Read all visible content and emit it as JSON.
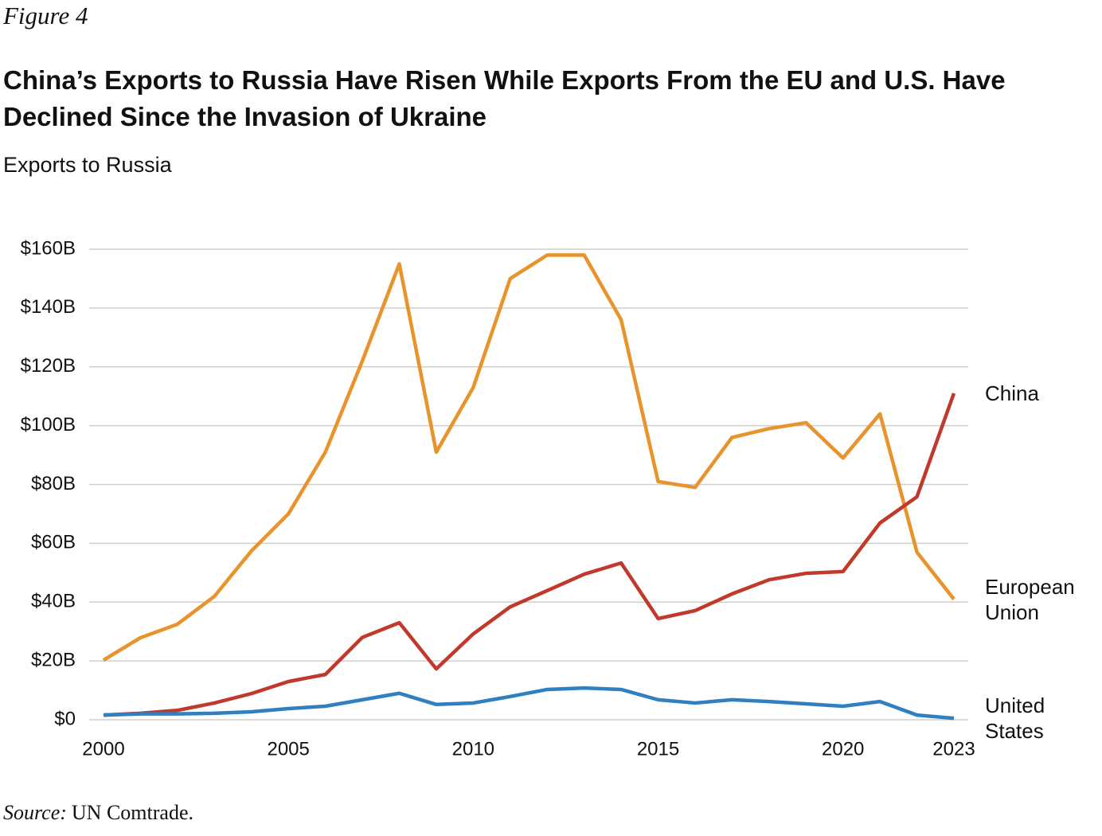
{
  "figure_label": "Figure 4",
  "source": {
    "label": "Source:",
    "text": "UN Comtrade."
  },
  "chart_data": {
    "type": "line",
    "title": "China’s Exports to Russia Have Risen While Exports From the EU and U.S. Have Declined Since the Invasion of Ukraine",
    "subtitle": "Exports to Russia",
    "x": [
      2000,
      2001,
      2002,
      2003,
      2004,
      2005,
      2006,
      2007,
      2008,
      2009,
      2010,
      2011,
      2012,
      2013,
      2014,
      2015,
      2016,
      2017,
      2018,
      2019,
      2020,
      2021,
      2022,
      2023
    ],
    "xlim": [
      2000,
      2023
    ],
    "xticks": [
      2000,
      2005,
      2010,
      2015,
      2020,
      2023
    ],
    "ylim": [
      0,
      160
    ],
    "yticks": [
      {
        "value": 0,
        "label": "$0"
      },
      {
        "value": 20,
        "label": "$20B"
      },
      {
        "value": 40,
        "label": "$40B"
      },
      {
        "value": 60,
        "label": "$60B"
      },
      {
        "value": 80,
        "label": "$80B"
      },
      {
        "value": 100,
        "label": "$100B"
      },
      {
        "value": 120,
        "label": "$120B"
      },
      {
        "value": 140,
        "label": "$140B"
      },
      {
        "value": 160,
        "label": "$160B"
      }
    ],
    "grid": true,
    "series": [
      {
        "name": "European Union",
        "color": "#e8932b",
        "values": [
          20.3,
          27.9,
          32.5,
          42,
          57.4,
          70,
          91,
          122,
          155,
          91,
          113,
          150,
          158,
          158,
          136,
          81,
          79,
          96,
          99,
          101,
          89,
          104,
          57,
          41
        ]
      },
      {
        "name": "China",
        "color": "#c0392b",
        "values": [
          1.6,
          2.2,
          3.2,
          5.7,
          8.9,
          13,
          15.4,
          28,
          33,
          17.3,
          29.2,
          38.4,
          43.9,
          49.5,
          53.3,
          34.4,
          37.1,
          42.8,
          47.6,
          49.8,
          50.4,
          66.9,
          75.8,
          111
        ]
      },
      {
        "name": "United States",
        "color": "#2f7fc1",
        "values": [
          1.6,
          2,
          2,
          2.2,
          2.7,
          3.8,
          4.6,
          6.8,
          9,
          5.2,
          5.7,
          7.9,
          10.3,
          10.8,
          10.3,
          6.8,
          5.7,
          6.8,
          6.2,
          5.4,
          4.6,
          6.2,
          1.6,
          0.5
        ]
      }
    ]
  }
}
